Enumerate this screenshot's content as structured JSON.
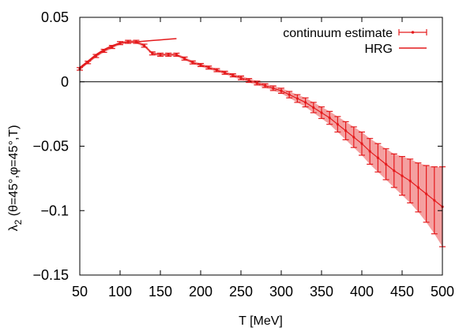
{
  "chart_data": {
    "type": "line",
    "title": "",
    "xlabel": "T [MeV]",
    "ylabel_main": "λ",
    "ylabel_sub": "2",
    "ylabel_rest": " (θ=45°,φ=45°,T)",
    "xlim": [
      50,
      500
    ],
    "ylim": [
      -0.15,
      0.05
    ],
    "xticks": [
      50,
      100,
      150,
      200,
      250,
      300,
      350,
      400,
      450,
      500
    ],
    "xtick_labels": [
      "50",
      "100",
      "150",
      "200",
      "250",
      "300",
      "350",
      "400",
      "450",
      "500"
    ],
    "yticks": [
      0.05,
      0,
      -0.05,
      -0.1,
      -0.15
    ],
    "ytick_labels": [
      "0.05",
      "0",
      "−0.05",
      "−0.1",
      "−0.15"
    ],
    "zero_line": true,
    "legend_position": "top-right",
    "colors": {
      "series": "#e41a1c",
      "band": "#f4a0a0"
    },
    "series": [
      {
        "name": "continuum estimate",
        "style": "points-errorbars-band",
        "x": [
          50,
          60,
          70,
          80,
          90,
          100,
          110,
          120,
          130,
          140,
          150,
          160,
          170,
          180,
          190,
          200,
          210,
          220,
          230,
          240,
          250,
          260,
          270,
          280,
          290,
          300,
          310,
          320,
          330,
          340,
          350,
          360,
          370,
          380,
          390,
          400,
          410,
          420,
          430,
          440,
          450,
          460,
          470,
          480,
          490,
          500
        ],
        "y": [
          0.01,
          0.015,
          0.02,
          0.024,
          0.027,
          0.03,
          0.031,
          0.031,
          0.028,
          0.022,
          0.021,
          0.021,
          0.021,
          0.018,
          0.015,
          0.013,
          0.011,
          0.009,
          0.007,
          0.005,
          0.003,
          0.001,
          -0.001,
          -0.003,
          -0.005,
          -0.007,
          -0.01,
          -0.013,
          -0.016,
          -0.02,
          -0.024,
          -0.028,
          -0.033,
          -0.038,
          -0.043,
          -0.048,
          -0.054,
          -0.059,
          -0.064,
          -0.069,
          -0.073,
          -0.077,
          -0.082,
          -0.087,
          -0.092,
          -0.097
        ],
        "yerr": [
          0.001,
          0.001,
          0.0012,
          0.0012,
          0.0012,
          0.0012,
          0.0012,
          0.0012,
          0.0012,
          0.0012,
          0.0012,
          0.0012,
          0.0012,
          0.0012,
          0.0012,
          0.0012,
          0.0012,
          0.0012,
          0.0012,
          0.0012,
          0.0015,
          0.0015,
          0.0015,
          0.0015,
          0.0018,
          0.002,
          0.0025,
          0.003,
          0.0035,
          0.004,
          0.0045,
          0.005,
          0.006,
          0.007,
          0.008,
          0.009,
          0.01,
          0.011,
          0.012,
          0.013,
          0.015,
          0.017,
          0.019,
          0.022,
          0.026,
          0.031
        ]
      },
      {
        "name": "HRG",
        "style": "line",
        "x": [
          50,
          60,
          70,
          80,
          90,
          100,
          110,
          120,
          130,
          140,
          150,
          160,
          170
        ],
        "y": [
          0.011,
          0.016,
          0.021,
          0.025,
          0.028,
          0.03,
          0.031,
          0.031,
          0.0315,
          0.032,
          0.0325,
          0.033,
          0.0335
        ]
      }
    ]
  }
}
